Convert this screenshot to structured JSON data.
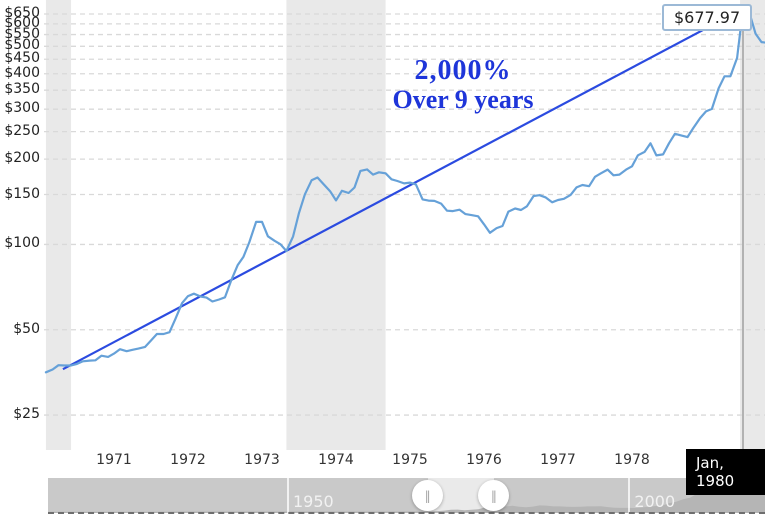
{
  "annotation": {
    "line1": "2,000%",
    "line2": "Over 9 years"
  },
  "tooltip": {
    "price": "$677.97",
    "date": "Jan, 1980"
  },
  "colors": {
    "data_line": "#66a1d8",
    "trend_line": "#2b4be0",
    "annotation_text": "#1e35d9",
    "gridline": "#d9d9d9",
    "recession_band": "#e9e9e9",
    "crosshair": "#9b9b9b",
    "tooltip_border": "#9cb9d6",
    "date_tip_bg": "#000000"
  },
  "chart_data": {
    "type": "line",
    "y_scale": "log",
    "x_range": [
      1970.58,
      1980.32
    ],
    "y_ticks": [
      {
        "value": 650,
        "label": "$650"
      },
      {
        "value": 600,
        "label": "$600"
      },
      {
        "value": 550,
        "label": "$550"
      },
      {
        "value": 500,
        "label": "$500"
      },
      {
        "value": 450,
        "label": "$450"
      },
      {
        "value": 400,
        "label": "$400"
      },
      {
        "value": 350,
        "label": "$350"
      },
      {
        "value": 300,
        "label": "$300"
      },
      {
        "value": 250,
        "label": "$250"
      },
      {
        "value": 200,
        "label": "$200"
      },
      {
        "value": 150,
        "label": "$150"
      },
      {
        "value": 100,
        "label": "$100"
      },
      {
        "value": 50,
        "label": "$50"
      },
      {
        "value": 25,
        "label": "$25"
      }
    ],
    "x_ticks": [
      {
        "year": 1971,
        "label": "1971"
      },
      {
        "year": 1972,
        "label": "1972"
      },
      {
        "year": 1973,
        "label": "1973"
      },
      {
        "year": 1974,
        "label": "1974"
      },
      {
        "year": 1975,
        "label": "1975"
      },
      {
        "year": 1976,
        "label": "1976"
      },
      {
        "year": 1977,
        "label": "1977"
      },
      {
        "year": 1978,
        "label": "1978"
      }
    ],
    "recessions": [
      [
        1970.58,
        1970.92
      ],
      [
        1973.83,
        1975.17
      ],
      [
        1979.96,
        1980.32
      ]
    ],
    "marker": {
      "year": 1980.0,
      "value": 677.97
    },
    "series": [
      {
        "name": "gold-price-monthly",
        "points": [
          [
            1970.58,
            35.4
          ],
          [
            1970.67,
            36.2
          ],
          [
            1970.75,
            37.5
          ],
          [
            1970.83,
            37.4
          ],
          [
            1970.92,
            37.4
          ],
          [
            1971.0,
            37.9
          ],
          [
            1971.08,
            38.7
          ],
          [
            1971.17,
            38.9
          ],
          [
            1971.25,
            39.0
          ],
          [
            1971.33,
            40.5
          ],
          [
            1971.42,
            40.1
          ],
          [
            1971.5,
            41.2
          ],
          [
            1971.58,
            42.7
          ],
          [
            1971.67,
            42.0
          ],
          [
            1971.75,
            42.5
          ],
          [
            1971.83,
            42.9
          ],
          [
            1971.92,
            43.5
          ],
          [
            1972.0,
            45.8
          ],
          [
            1972.08,
            48.3
          ],
          [
            1972.17,
            48.3
          ],
          [
            1972.25,
            49.0
          ],
          [
            1972.33,
            54.6
          ],
          [
            1972.42,
            62.1
          ],
          [
            1972.5,
            65.7
          ],
          [
            1972.58,
            67.0
          ],
          [
            1972.67,
            65.5
          ],
          [
            1972.75,
            64.9
          ],
          [
            1972.83,
            62.9
          ],
          [
            1972.92,
            63.9
          ],
          [
            1973.0,
            65.1
          ],
          [
            1973.08,
            74.2
          ],
          [
            1973.17,
            84.4
          ],
          [
            1973.25,
            90.5
          ],
          [
            1973.33,
            102.0
          ],
          [
            1973.42,
            120.1
          ],
          [
            1973.5,
            120.2
          ],
          [
            1973.58,
            106.8
          ],
          [
            1973.67,
            103.0
          ],
          [
            1973.75,
            100.1
          ],
          [
            1973.83,
            94.8
          ],
          [
            1973.92,
            106.7
          ],
          [
            1974.0,
            129.2
          ],
          [
            1974.08,
            150.2
          ],
          [
            1974.17,
            168.4
          ],
          [
            1974.25,
            172.2
          ],
          [
            1974.33,
            163.3
          ],
          [
            1974.42,
            154.1
          ],
          [
            1974.5,
            143.0
          ],
          [
            1974.58,
            154.6
          ],
          [
            1974.67,
            151.8
          ],
          [
            1974.75,
            158.8
          ],
          [
            1974.83,
            181.7
          ],
          [
            1974.92,
            183.9
          ],
          [
            1975.0,
            176.3
          ],
          [
            1975.08,
            179.7
          ],
          [
            1975.17,
            178.2
          ],
          [
            1975.25,
            169.7
          ],
          [
            1975.33,
            167.4
          ],
          [
            1975.42,
            164.2
          ],
          [
            1975.5,
            165.2
          ],
          [
            1975.58,
            162.8
          ],
          [
            1975.67,
            144.1
          ],
          [
            1975.75,
            142.8
          ],
          [
            1975.83,
            142.4
          ],
          [
            1975.92,
            139.3
          ],
          [
            1976.0,
            131.5
          ],
          [
            1976.08,
            131.1
          ],
          [
            1976.17,
            132.6
          ],
          [
            1976.25,
            127.9
          ],
          [
            1976.33,
            126.9
          ],
          [
            1976.42,
            125.7
          ],
          [
            1976.5,
            117.8
          ],
          [
            1976.58,
            109.9
          ],
          [
            1976.67,
            114.2
          ],
          [
            1976.75,
            116.1
          ],
          [
            1976.83,
            130.5
          ],
          [
            1976.92,
            133.9
          ],
          [
            1977.0,
            132.3
          ],
          [
            1977.08,
            136.3
          ],
          [
            1977.17,
            148.2
          ],
          [
            1977.25,
            149.2
          ],
          [
            1977.33,
            146.6
          ],
          [
            1977.42,
            140.8
          ],
          [
            1977.5,
            143.4
          ],
          [
            1977.58,
            144.9
          ],
          [
            1977.67,
            149.5
          ],
          [
            1977.75,
            158.9
          ],
          [
            1977.83,
            162.1
          ],
          [
            1977.92,
            160.5
          ],
          [
            1978.0,
            173.2
          ],
          [
            1978.08,
            178.2
          ],
          [
            1978.17,
            183.7
          ],
          [
            1978.25,
            175.3
          ],
          [
            1978.33,
            176.3
          ],
          [
            1978.42,
            183.7
          ],
          [
            1978.5,
            188.7
          ],
          [
            1978.58,
            206.3
          ],
          [
            1978.67,
            212.1
          ],
          [
            1978.75,
            227.4
          ],
          [
            1978.83,
            206.1
          ],
          [
            1978.92,
            207.8
          ],
          [
            1979.0,
            227.3
          ],
          [
            1979.08,
            245.7
          ],
          [
            1979.17,
            242.0
          ],
          [
            1979.25,
            239.2
          ],
          [
            1979.33,
            257.6
          ],
          [
            1979.42,
            279.1
          ],
          [
            1979.5,
            294.7
          ],
          [
            1979.58,
            300.8
          ],
          [
            1979.67,
            355.1
          ],
          [
            1979.75,
            391.7
          ],
          [
            1979.83,
            392.0
          ],
          [
            1979.92,
            455.1
          ],
          [
            1980.0,
            677.97
          ],
          [
            1980.08,
            665.3
          ],
          [
            1980.17,
            553.6
          ],
          [
            1980.25,
            517.4
          ],
          [
            1980.33,
            513.8
          ]
        ]
      },
      {
        "name": "trend-line",
        "points": [
          [
            1970.81,
            36.3
          ],
          [
            1980.0,
            677.97
          ]
        ]
      }
    ]
  },
  "slider": {
    "range": [
      1915,
      2020
    ],
    "selection": [
      1970.6,
      1980.3
    ],
    "tick_labels": [
      {
        "year": 1950,
        "label": "1950"
      },
      {
        "year": 2000,
        "label": "2000"
      }
    ],
    "handle_glyph": "‖",
    "sparkline": [
      [
        1915,
        21
      ],
      [
        1925,
        21
      ],
      [
        1930,
        21
      ],
      [
        1933,
        26
      ],
      [
        1934,
        35
      ],
      [
        1945,
        35
      ],
      [
        1955,
        35
      ],
      [
        1965,
        35
      ],
      [
        1968,
        39
      ],
      [
        1970,
        36
      ],
      [
        1971,
        41
      ],
      [
        1972,
        58
      ],
      [
        1973,
        97
      ],
      [
        1974,
        154
      ],
      [
        1975,
        161
      ],
      [
        1976,
        125
      ],
      [
        1977,
        148
      ],
      [
        1978,
        193
      ],
      [
        1979,
        306
      ],
      [
        1980,
        615
      ],
      [
        1981,
        460
      ],
      [
        1982,
        376
      ],
      [
        1983,
        424
      ],
      [
        1984,
        361
      ],
      [
        1985,
        317
      ],
      [
        1986,
        368
      ],
      [
        1987,
        447
      ],
      [
        1988,
        437
      ],
      [
        1989,
        381
      ],
      [
        1990,
        384
      ],
      [
        1991,
        362
      ],
      [
        1992,
        344
      ],
      [
        1993,
        360
      ],
      [
        1994,
        384
      ],
      [
        1995,
        384
      ],
      [
        1996,
        388
      ],
      [
        1997,
        331
      ],
      [
        1998,
        294
      ],
      [
        1999,
        279
      ],
      [
        2000,
        279
      ],
      [
        2001,
        271
      ],
      [
        2002,
        310
      ],
      [
        2003,
        363
      ],
      [
        2004,
        410
      ],
      [
        2005,
        445
      ],
      [
        2006,
        603
      ],
      [
        2007,
        695
      ],
      [
        2008,
        872
      ],
      [
        2009,
        972
      ],
      [
        2010,
        1225
      ],
      [
        2011,
        1572
      ],
      [
        2012,
        1669
      ],
      [
        2013,
        1411
      ],
      [
        2014,
        1266
      ],
      [
        2015,
        1160
      ],
      [
        2016,
        1251
      ],
      [
        2017,
        1260
      ],
      [
        2018,
        1269
      ],
      [
        2019,
        1393
      ],
      [
        2020,
        1770
      ]
    ]
  }
}
